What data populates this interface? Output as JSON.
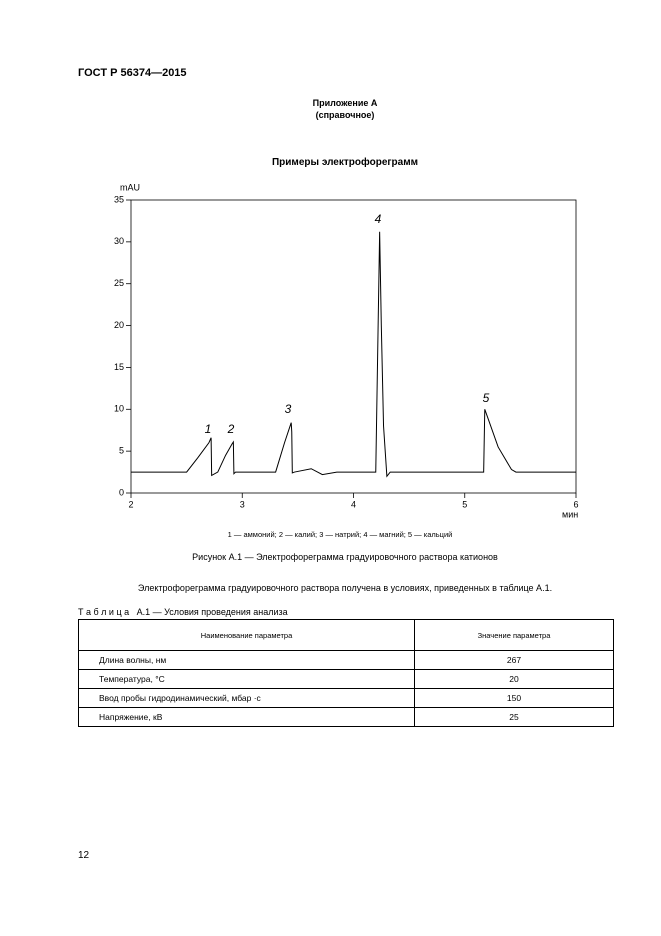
{
  "header": {
    "code": "ГОСТ Р 56374—2015"
  },
  "appendix": {
    "title": "Приложение А",
    "note": "(справочное)"
  },
  "chart_data": {
    "type": "line",
    "title": "Примеры электрофореграмм",
    "y_label": "mAU",
    "x_label": "мин",
    "x": [
      2.0,
      2.5,
      2.6,
      2.7,
      2.72,
      2.725,
      2.78,
      2.85,
      2.91,
      2.92,
      2.925,
      2.94,
      3.3,
      3.38,
      3.44,
      3.445,
      3.45,
      3.47,
      3.62,
      3.72,
      3.85,
      4.2,
      4.235,
      4.25,
      4.27,
      4.3,
      4.33,
      5.17,
      5.18,
      5.22,
      5.3,
      5.42,
      5.46,
      6.0
    ],
    "values": [
      2.5,
      2.5,
      4.2,
      6.0,
      6.6,
      2.1,
      2.5,
      4.5,
      5.9,
      6.1,
      2.3,
      2.5,
      2.5,
      6.0,
      8.4,
      7.3,
      2.4,
      2.5,
      2.9,
      2.2,
      2.5,
      2.5,
      31.2,
      20,
      8,
      2.0,
      2.5,
      2.5,
      10.0,
      8.5,
      5.5,
      2.8,
      2.5,
      2.5
    ],
    "color": "#000000",
    "xlim": [
      2,
      6
    ],
    "xticks": [
      2,
      3,
      4,
      5,
      6
    ],
    "ylim": [
      0,
      35
    ],
    "yticks": [
      0,
      5,
      10,
      15,
      20,
      25,
      30,
      35
    ],
    "annotations": [
      "1",
      "2",
      "3",
      "4",
      "5"
    ],
    "legend_text": "1 — аммоний; 2 — калий; 3 — натрий; 4 — магний; 5 — кальций"
  },
  "figure_caption": "Рисунок А.1 — Электрофореграмма градуировочного раствора катионов",
  "paragraph": "Электрофореграмма градуировочного раствора получена в условиях, приведенных в таблице А.1.",
  "table": {
    "caption": "Т а б л и ц а   А.1 — Условия проведения анализа",
    "header": [
      "Наименование параметра",
      "Значение параметра"
    ],
    "rows": [
      [
        "Длина волны, нм",
        "267"
      ],
      [
        "Температура, °С",
        "20"
      ],
      [
        "Ввод пробы гидродинамический, мбар ·с",
        "150"
      ],
      [
        "Напряжение, кВ",
        "25"
      ]
    ]
  },
  "page_number": "12"
}
